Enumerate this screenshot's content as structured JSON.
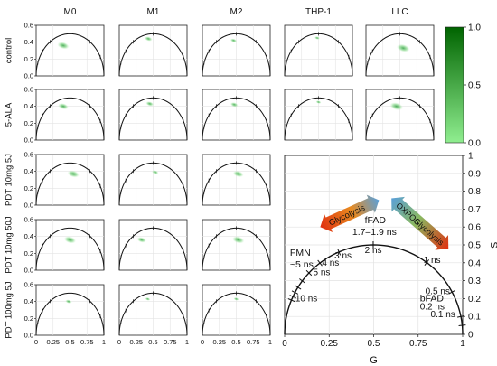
{
  "chart_data": {
    "type": "scatter",
    "subtype": "phasor-plot-grid",
    "columns": [
      "M0",
      "M1",
      "M2",
      "THP-1",
      "LLC"
    ],
    "rows": [
      "control",
      "5-ALA",
      "PDT 10mg 5J",
      "PDT 10mg 50J",
      "PDT 100mg 5J"
    ],
    "small_axes": {
      "xlim": [
        0,
        1
      ],
      "ylim": [
        0,
        0.6
      ],
      "y_ticks": [
        "0.0",
        "0.2",
        "0.4",
        "0.6"
      ],
      "x_ticks": [
        "0",
        "0.25",
        "0.5",
        "0.75",
        "1"
      ]
    },
    "clusters": [
      {
        "row": "control",
        "col": "M0",
        "g": 0.4,
        "s": 0.36,
        "spread": 0.09
      },
      {
        "row": "control",
        "col": "M1",
        "g": 0.43,
        "s": 0.44,
        "spread": 0.06
      },
      {
        "row": "control",
        "col": "M2",
        "g": 0.46,
        "s": 0.42,
        "spread": 0.05
      },
      {
        "row": "control",
        "col": "THP-1",
        "g": 0.48,
        "s": 0.45,
        "spread": 0.04
      },
      {
        "row": "control",
        "col": "LLC",
        "g": 0.55,
        "s": 0.33,
        "spread": 0.1
      },
      {
        "row": "5-ALA",
        "col": "M0",
        "g": 0.4,
        "s": 0.4,
        "spread": 0.08
      },
      {
        "row": "5-ALA",
        "col": "M1",
        "g": 0.45,
        "s": 0.43,
        "spread": 0.06
      },
      {
        "row": "5-ALA",
        "col": "M2",
        "g": 0.47,
        "s": 0.42,
        "spread": 0.06
      },
      {
        "row": "5-ALA",
        "col": "THP-1",
        "g": 0.5,
        "s": 0.45,
        "spread": 0.04
      },
      {
        "row": "5-ALA",
        "col": "LLC",
        "g": 0.45,
        "s": 0.4,
        "spread": 0.1
      },
      {
        "row": "PDT 10mg 5J",
        "col": "M0",
        "g": 0.55,
        "s": 0.37,
        "spread": 0.09
      },
      {
        "row": "PDT 10mg 5J",
        "col": "M1",
        "g": 0.53,
        "s": 0.39,
        "spread": 0.05
      },
      {
        "row": "PDT 10mg 5J",
        "col": "M2",
        "g": 0.53,
        "s": 0.37,
        "spread": 0.08
      },
      {
        "row": "PDT 10mg 50J",
        "col": "M0",
        "g": 0.5,
        "s": 0.36,
        "spread": 0.09
      },
      {
        "row": "PDT 10mg 50J",
        "col": "M1",
        "g": 0.33,
        "s": 0.36,
        "spread": 0.07
      },
      {
        "row": "PDT 10mg 50J",
        "col": "M2",
        "g": 0.53,
        "s": 0.36,
        "spread": 0.09
      },
      {
        "row": "PDT 100mg 5J",
        "col": "M0",
        "g": 0.48,
        "s": 0.4,
        "spread": 0.05
      },
      {
        "row": "PDT 100mg 5J",
        "col": "M1",
        "g": 0.42,
        "s": 0.43,
        "spread": 0.04
      },
      {
        "row": "PDT 100mg 5J",
        "col": "M2",
        "g": 0.5,
        "s": 0.43,
        "spread": 0.04
      }
    ],
    "colorbar": {
      "ticks": [
        "0.0",
        "0.5",
        "1.0"
      ],
      "color_low": "#90ee90",
      "color_high": "#006400"
    },
    "reference": {
      "xlabel": "G",
      "ylabel": "S",
      "xlim": [
        0,
        1
      ],
      "ylim": [
        0,
        1
      ],
      "x_ticks": [
        "0",
        "0.25",
        "0.5",
        "0.75",
        "1"
      ],
      "y_ticks": [
        "0",
        "0.1",
        "0.2",
        "0.3",
        "0.4",
        "0.5",
        "0.6",
        "0.7",
        "0.8",
        "0.9",
        "1"
      ],
      "grid": true,
      "lifetime_labels": [
        {
          "text": "10 ns",
          "g": 0.06,
          "s": 0.185
        },
        {
          "text": "5 ns",
          "g": 0.16,
          "s": 0.33
        },
        {
          "text": "4 ns",
          "g": 0.21,
          "s": 0.385
        },
        {
          "text": "3 ns",
          "g": 0.28,
          "s": 0.425
        },
        {
          "text": "2 ns",
          "g": 0.45,
          "s": 0.455
        },
        {
          "text": "1 ns",
          "g": 0.78,
          "s": 0.4
        },
        {
          "text": "0.5 ns",
          "g": 0.79,
          "s": 0.225
        },
        {
          "text": "0.2 ns",
          "g": 0.76,
          "s": 0.14
        },
        {
          "text": "0.1 ns",
          "g": 0.82,
          "s": 0.095
        }
      ],
      "species_labels": [
        {
          "text": "FMN",
          "g": 0.03,
          "s": 0.44
        },
        {
          "text": "~5 ns",
          "g": 0.03,
          "s": 0.375
        },
        {
          "text": "fFAD",
          "g": 0.45,
          "s": 0.62
        },
        {
          "text": "1.7–1.9 ns",
          "g": 0.38,
          "s": 0.555
        },
        {
          "text": "bFAD",
          "g": 0.76,
          "s": 0.185
        }
      ],
      "arrows": [
        {
          "text": "Glycolysis",
          "from": [
            0.2,
            0.6
          ],
          "to": [
            0.53,
            0.75
          ],
          "color_start": "#e03010",
          "color_end": "#5aa0d8"
        },
        {
          "text": "OXPOS",
          "text2": "Glycolysis",
          "from": [
            0.6,
            0.76
          ],
          "to": [
            0.92,
            0.48
          ],
          "color_start": "#5aa0d8",
          "color_end": "#e03010"
        }
      ]
    }
  }
}
